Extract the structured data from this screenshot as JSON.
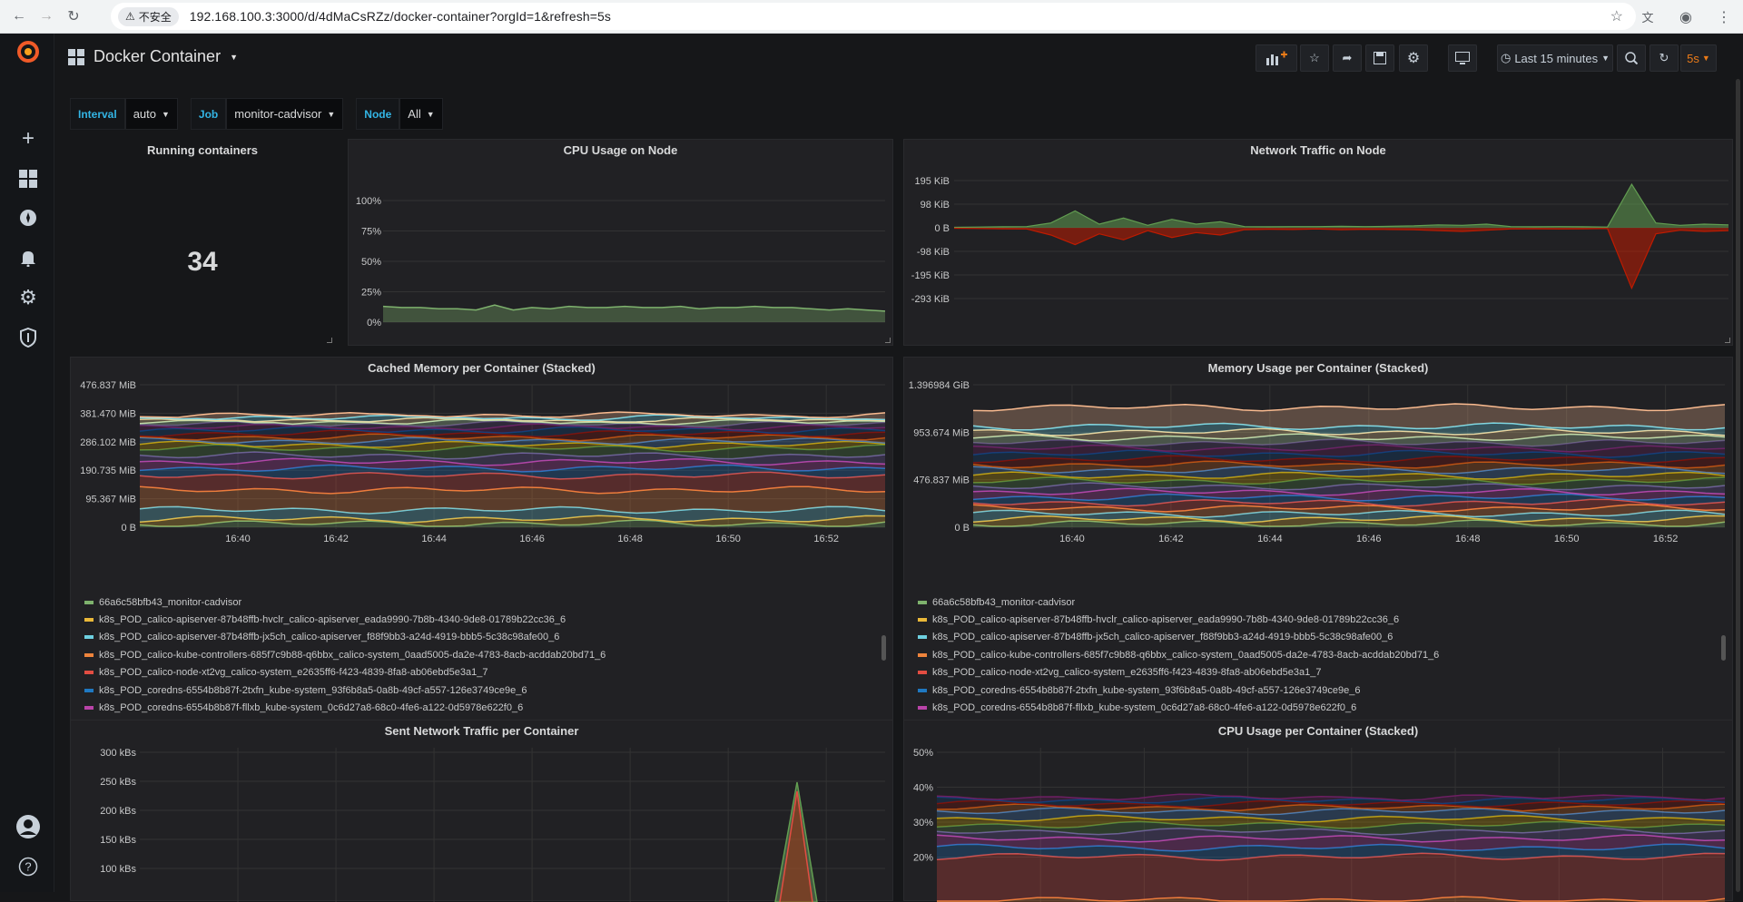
{
  "browser": {
    "insecure_label": "不安全",
    "url": "192.168.100.3:3000/d/4dMaCsRZz/docker-container?orgId=1&refresh=5s"
  },
  "dashboard": {
    "title": "Docker Container",
    "time_range": "Last 15 minutes",
    "refresh": "5s"
  },
  "variables": [
    {
      "label": "Interval",
      "value": "auto"
    },
    {
      "label": "Job",
      "value": "monitor-cadvisor"
    },
    {
      "label": "Node",
      "value": "All"
    }
  ],
  "panels": {
    "running": {
      "title": "Running containers",
      "value": "34"
    },
    "cpu_node": {
      "title": "CPU Usage on Node",
      "y_ticks": [
        "100%",
        "75%",
        "50%",
        "25%",
        "0%"
      ],
      "chart_data": {
        "type": "area",
        "ylim": [
          0,
          100
        ],
        "series": [
          {
            "name": "",
            "color": "#7eb26d",
            "values": [
              13,
              12,
              12,
              11,
              11,
              10,
              14,
              10,
              12,
              11,
              13,
              12,
              12,
              13,
              12,
              12,
              13,
              11,
              12,
              12,
              13,
              12,
              12,
              11,
              10,
              11,
              10,
              9
            ]
          }
        ]
      }
    },
    "net_node": {
      "title": "Network Traffic on Node",
      "y_ticks": [
        "195 KiB",
        "98 KiB",
        "0 B",
        "-98 KiB",
        "-195 KiB",
        "-293 KiB"
      ],
      "chart_data": {
        "type": "area",
        "ylim": [
          -293,
          195
        ],
        "series": [
          {
            "name": "",
            "color": "#629e51",
            "values": [
              2,
              3,
              4,
              5,
              20,
              70,
              15,
              40,
              10,
              35,
              15,
              25,
              5,
              4,
              5,
              5,
              6,
              5,
              6,
              8,
              12,
              10,
              15,
              5,
              4,
              5,
              4,
              3,
              180,
              20,
              10,
              15,
              12
            ]
          },
          {
            "name": "",
            "color": "#bf1b00",
            "values": [
              -2,
              -3,
              -4,
              -5,
              -30,
              -70,
              -25,
              -50,
              -12,
              -40,
              -20,
              -30,
              -8,
              -6,
              -7,
              -5,
              -8,
              -6,
              -7,
              -8,
              -12,
              -15,
              -10,
              -5,
              -4,
              -5,
              -4,
              -3,
              -250,
              -25,
              -10,
              -15,
              -12
            ]
          }
        ]
      }
    },
    "cached_mem": {
      "title": "Cached Memory per Container (Stacked)",
      "y_ticks": [
        "476.837 MiB",
        "381.470 MiB",
        "286.102 MiB",
        "190.735 MiB",
        "95.367 MiB",
        "0 B"
      ],
      "x_ticks": [
        "16:40",
        "16:42",
        "16:44",
        "16:46",
        "16:48",
        "16:50",
        "16:52"
      ],
      "legend": [
        {
          "color": "#7eb26d",
          "text": "66a6c58bfb43_monitor-cadvisor"
        },
        {
          "color": "#eab839",
          "text": "k8s_POD_calico-apiserver-87b48ffb-hvclr_calico-apiserver_eada9990-7b8b-4340-9de8-01789b22cc36_6"
        },
        {
          "color": "#6ed0e0",
          "text": "k8s_POD_calico-apiserver-87b48ffb-jx5ch_calico-apiserver_f88f9bb3-a24d-4919-bbb5-5c38c98afe00_6"
        },
        {
          "color": "#ef843c",
          "text": "k8s_POD_calico-kube-controllers-685f7c9b88-q6bbx_calico-system_0aad5005-da2e-4783-8acb-acddab20bd71_6"
        },
        {
          "color": "#e24d42",
          "text": "k8s_POD_calico-node-xt2vg_calico-system_e2635ff6-f423-4839-8fa8-ab06ebd5e3a1_7"
        },
        {
          "color": "#1f78c1",
          "text": "k8s_POD_coredns-6554b8b87f-2txfn_kube-system_93f6b8a5-0a8b-49cf-a557-126e3749ce9e_6"
        },
        {
          "color": "#ba43a9",
          "text": "k8s_POD_coredns-6554b8b87f-fllxb_kube-system_0c6d27a8-68c0-4fe6-a122-0d5978e622f0_6"
        }
      ]
    },
    "mem_usage": {
      "title": "Memory Usage per Container (Stacked)",
      "y_ticks": [
        "1.396984 GiB",
        "953.674 MiB",
        "476.837 MiB",
        "0 B"
      ],
      "x_ticks": [
        "16:40",
        "16:42",
        "16:44",
        "16:46",
        "16:48",
        "16:50",
        "16:52"
      ],
      "legend": [
        {
          "color": "#7eb26d",
          "text": "66a6c58bfb43_monitor-cadvisor"
        },
        {
          "color": "#eab839",
          "text": "k8s_POD_calico-apiserver-87b48ffb-hvclr_calico-apiserver_eada9990-7b8b-4340-9de8-01789b22cc36_6"
        },
        {
          "color": "#6ed0e0",
          "text": "k8s_POD_calico-apiserver-87b48ffb-jx5ch_calico-apiserver_f88f9bb3-a24d-4919-bbb5-5c38c98afe00_6"
        },
        {
          "color": "#ef843c",
          "text": "k8s_POD_calico-kube-controllers-685f7c9b88-q6bbx_calico-system_0aad5005-da2e-4783-8acb-acddab20bd71_6"
        },
        {
          "color": "#e24d42",
          "text": "k8s_POD_calico-node-xt2vg_calico-system_e2635ff6-f423-4839-8fa8-ab06ebd5e3a1_7"
        },
        {
          "color": "#1f78c1",
          "text": "k8s_POD_coredns-6554b8b87f-2txfn_kube-system_93f6b8a5-0a8b-49cf-a557-126e3749ce9e_6"
        },
        {
          "color": "#ba43a9",
          "text": "k8s_POD_coredns-6554b8b87f-fllxb_kube-system_0c6d27a8-68c0-4fe6-a122-0d5978e622f0_6"
        }
      ]
    },
    "sent_net": {
      "title": "Sent Network Traffic per Container",
      "y_ticks": [
        "300 kBs",
        "250 kBs",
        "200 kBs",
        "150 kBs",
        "100 kBs"
      ]
    },
    "cpu_container": {
      "title": "CPU Usage per Container (Stacked)",
      "y_ticks": [
        "50%",
        "40%",
        "30%",
        "20%"
      ]
    }
  }
}
